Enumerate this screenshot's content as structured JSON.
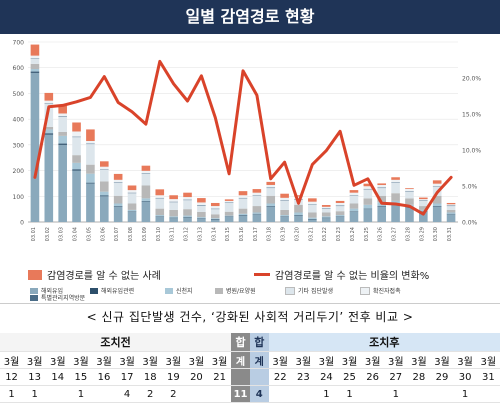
{
  "title": "일별 감염경로 현황",
  "chart_data": {
    "type": "bar",
    "stacked": true,
    "y_left": {
      "min": 0,
      "max": 700,
      "ticks": [
        0,
        100,
        200,
        300,
        400,
        500,
        600,
        700
      ]
    },
    "y_right": {
      "min": 0,
      "max": 25,
      "unit": "%",
      "ticks": [
        "0.0%",
        "5.0%",
        "10.0%",
        "15.0%",
        "20.0%"
      ]
    },
    "grid": true,
    "categories": [
      "03.01",
      "03.02",
      "03.03",
      "03.04",
      "03.05",
      "03.06",
      "03.07",
      "03.08",
      "03.09",
      "03.10",
      "03.11",
      "03.12",
      "03.13",
      "03.14",
      "03.15",
      "03.16",
      "03.17",
      "03.18",
      "03.19",
      "03.20",
      "03.21",
      "03.22",
      "03.23",
      "03.24",
      "03.25",
      "03.26",
      "03.27",
      "03.28",
      "03.29",
      "03.30",
      "03.31"
    ],
    "series": [
      {
        "name": "해외유입",
        "color": "#8aa9bc",
        "values": [
          580,
          340,
          300,
          200,
          150,
          100,
          60,
          40,
          80,
          20,
          15,
          18,
          12,
          10,
          20,
          25,
          30,
          60,
          20,
          25,
          10,
          15,
          20,
          40,
          50,
          60,
          70,
          55,
          40,
          60,
          30
        ]
      },
      {
        "name": "해외유입관련",
        "color": "#2d4f6b",
        "values": [
          5,
          5,
          5,
          5,
          3,
          3,
          2,
          2,
          2,
          2,
          2,
          2,
          2,
          2,
          2,
          2,
          2,
          2,
          2,
          2,
          2,
          2,
          2,
          2,
          2,
          2,
          2,
          2,
          2,
          2,
          2
        ]
      },
      {
        "name": "신천지",
        "color": "#a8c8d8",
        "values": [
          10,
          15,
          30,
          25,
          35,
          15,
          10,
          5,
          10,
          5,
          5,
          5,
          5,
          3,
          3,
          5,
          5,
          10,
          5,
          10,
          5,
          5,
          5,
          10,
          15,
          15,
          10,
          10,
          5,
          10,
          5
        ]
      },
      {
        "name": "병원/요양원",
        "color": "#b8b8b8",
        "values": [
          20,
          10,
          15,
          30,
          35,
          40,
          30,
          25,
          50,
          25,
          25,
          25,
          20,
          15,
          15,
          20,
          25,
          30,
          20,
          30,
          20,
          15,
          15,
          20,
          25,
          25,
          30,
          25,
          15,
          30,
          10
        ]
      },
      {
        "name": "기타 집단발생",
        "color": "#dde6ec",
        "values": [
          20,
          90,
          60,
          70,
          80,
          45,
          50,
          40,
          45,
          40,
          30,
          35,
          25,
          20,
          35,
          40,
          40,
          30,
          35,
          20,
          30,
          15,
          20,
          30,
          35,
          30,
          40,
          25,
          20,
          35,
          15
        ]
      },
      {
        "name": "특별관리지역방문",
        "color": "#4a6c87",
        "values": [
          2,
          2,
          2,
          2,
          2,
          2,
          2,
          2,
          2,
          2,
          2,
          2,
          2,
          2,
          2,
          2,
          2,
          2,
          2,
          2,
          2,
          2,
          2,
          2,
          2,
          2,
          2,
          2,
          2,
          2,
          2
        ]
      },
      {
        "name": "확진자접촉",
        "color": "#eef2f5",
        "values": [
          10,
          10,
          10,
          20,
          10,
          10,
          10,
          10,
          10,
          10,
          10,
          10,
          10,
          10,
          5,
          10,
          10,
          10,
          10,
          10,
          10,
          5,
          10,
          10,
          10,
          10,
          10,
          10,
          5,
          10,
          5
        ]
      },
      {
        "name": "감염경로를 알 수 없는 사례",
        "color": "#e8795a",
        "values": [
          43,
          30,
          30,
          35,
          45,
          21,
          23,
          18,
          20,
          23,
          15,
          17,
          17,
          12,
          6,
          16,
          14,
          12,
          16,
          5,
          13,
          7,
          8,
          10,
          10,
          6,
          10,
          3,
          6,
          13,
          5
        ]
      }
    ],
    "line": {
      "name": "감염경로를 알 수 없는 비율의 변화%",
      "color": "#d9432a",
      "axis": "right",
      "values": [
        6.2,
        16.0,
        16.2,
        16.7,
        17.3,
        20.2,
        16.6,
        15.3,
        13.6,
        22.3,
        19.2,
        16.8,
        20.3,
        14.5,
        6.7,
        21.0,
        17.6,
        6.0,
        8.3,
        2.6,
        8.0,
        9.9,
        12.6,
        5.1,
        6.0,
        2.6,
        2.5,
        2.2,
        1.1,
        4.1,
        6.2
      ]
    }
  },
  "legend_main": [
    {
      "label": "감염경로를 알 수 없는 사례",
      "color": "#e8795a",
      "kind": "box"
    },
    {
      "label": "감염경로를 알 수 없는 비율의 변화%",
      "color": "#d9432a",
      "kind": "line"
    }
  ],
  "legend_sub": [
    {
      "label": "해외유입",
      "color": "#8aa9bc"
    },
    {
      "label": "해외유입관련",
      "color": "#2d4f6b"
    },
    {
      "label": "신천지",
      "color": "#a8c8d8"
    },
    {
      "label": "병원/요양원",
      "color": "#b8b8b8"
    },
    {
      "label": "기타 집단발생",
      "color": "#dde6ec"
    },
    {
      "label": "특별관리지역방문",
      "color": "#4a6c87"
    },
    {
      "label": "확진자접촉",
      "color": "#eef2f5"
    }
  ],
  "comparison": {
    "subtitle": "< 신규 집단발생 건수, ‘강화된 사회적 거리두기’ 전후 비교 >",
    "before_label": "조치전",
    "after_label": "조치후",
    "before_month": [
      "3월",
      "3월",
      "3월",
      "3월",
      "3월",
      "3월",
      "3월",
      "3월",
      "3월",
      "3월"
    ],
    "before_days": [
      "12",
      "13",
      "14",
      "15",
      "16",
      "17",
      "18",
      "19",
      "20",
      "21"
    ],
    "before_counts": [
      "1",
      "1",
      "",
      "1",
      "",
      "4",
      "2",
      "2",
      "",
      ""
    ],
    "before_total_label": [
      "합",
      "계"
    ],
    "before_total": "11",
    "after_total_label": [
      "합",
      "계"
    ],
    "after_total": "4",
    "after_month": [
      "3월",
      "3월",
      "3월",
      "3월",
      "3월",
      "3월",
      "3월",
      "3월",
      "3월",
      "3월"
    ],
    "after_days": [
      "22",
      "23",
      "24",
      "25",
      "26",
      "27",
      "28",
      "29",
      "30",
      "31"
    ],
    "after_counts": [
      "",
      "",
      "1",
      "1",
      "",
      "1",
      "",
      "",
      "1",
      ""
    ]
  }
}
